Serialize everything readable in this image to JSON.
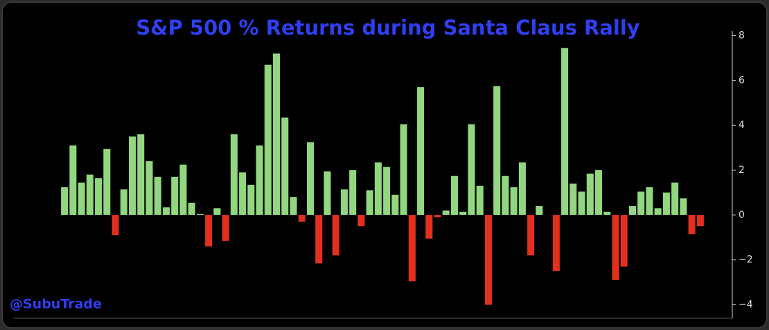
{
  "chart_data": {
    "type": "bar",
    "title": "S&P 500 % Returns during Santa Claus Rally",
    "annotation": "@SubuTrade",
    "values": [
      1.25,
      3.1,
      1.45,
      1.8,
      1.65,
      2.95,
      -0.9,
      1.15,
      3.5,
      3.6,
      2.4,
      1.7,
      0.35,
      1.7,
      2.25,
      0.55,
      0.05,
      -1.4,
      0.3,
      -1.15,
      3.6,
      1.9,
      1.35,
      3.1,
      6.7,
      7.2,
      4.35,
      0.8,
      -0.3,
      3.25,
      -2.15,
      1.95,
      -1.8,
      1.15,
      2.0,
      -0.5,
      1.1,
      2.35,
      2.15,
      0.9,
      4.05,
      -2.95,
      5.7,
      -1.05,
      -0.1,
      0.2,
      1.75,
      0.15,
      4.05,
      1.3,
      -4.0,
      5.75,
      1.75,
      1.25,
      2.35,
      -1.8,
      0.4,
      0,
      -2.5,
      7.45,
      1.4,
      1.05,
      1.85,
      2.0,
      0.15,
      -2.9,
      -2.3,
      0.4,
      1.05,
      1.25,
      0.3,
      1.0,
      1.45,
      0.75,
      -0.85,
      -0.5
    ],
    "positive_color": "#92d77f",
    "negative_color": "#e2301d",
    "ylim": [
      -4.6,
      8.2
    ],
    "yticks": [
      {
        "value": -4,
        "label": "−4"
      },
      {
        "value": -2,
        "label": "−2"
      },
      0,
      2,
      4,
      6,
      8
    ],
    "y_axis_side": "right"
  }
}
